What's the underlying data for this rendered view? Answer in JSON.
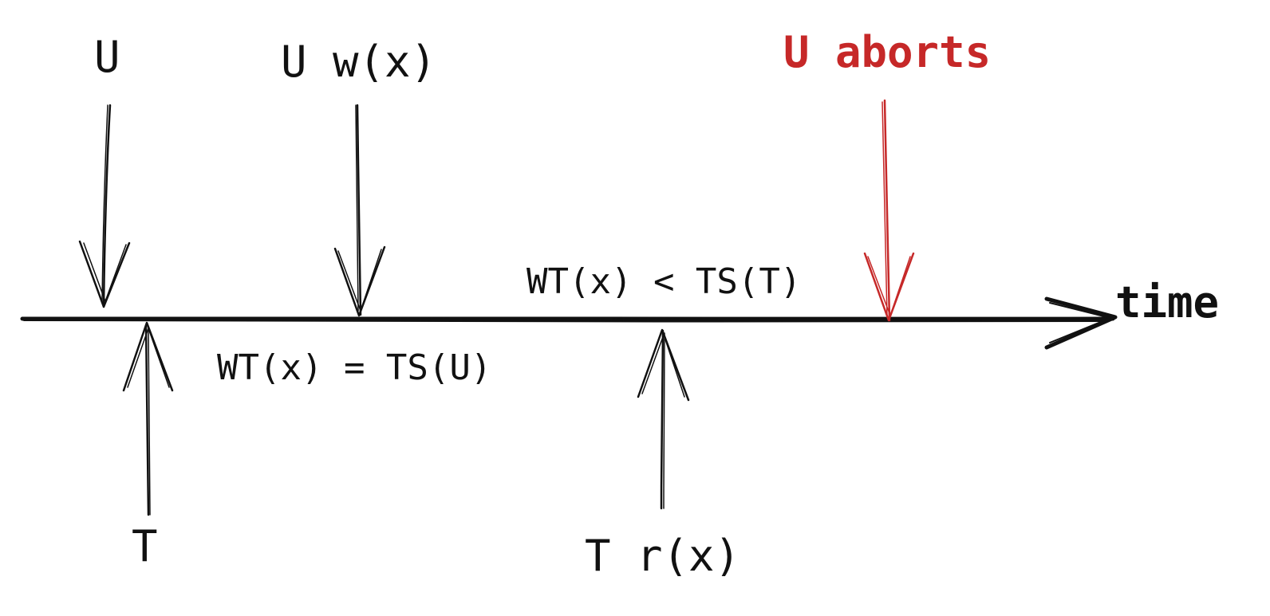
{
  "timeline": {
    "axis_label": "time"
  },
  "events_above": [
    {
      "id": "u-start",
      "label": "U"
    },
    {
      "id": "u-write",
      "label": "U w(x)"
    },
    {
      "id": "u-abort",
      "label": "U aborts"
    }
  ],
  "events_below": [
    {
      "id": "t-start",
      "label": "T"
    },
    {
      "id": "t-read",
      "label": "T r(x)"
    }
  ],
  "annotations": {
    "wt_equals": "WT(x) = TS(U)",
    "wt_less": "WT(x) < TS(T)"
  },
  "colors": {
    "ink": "#111111",
    "abort": "#c62828"
  }
}
